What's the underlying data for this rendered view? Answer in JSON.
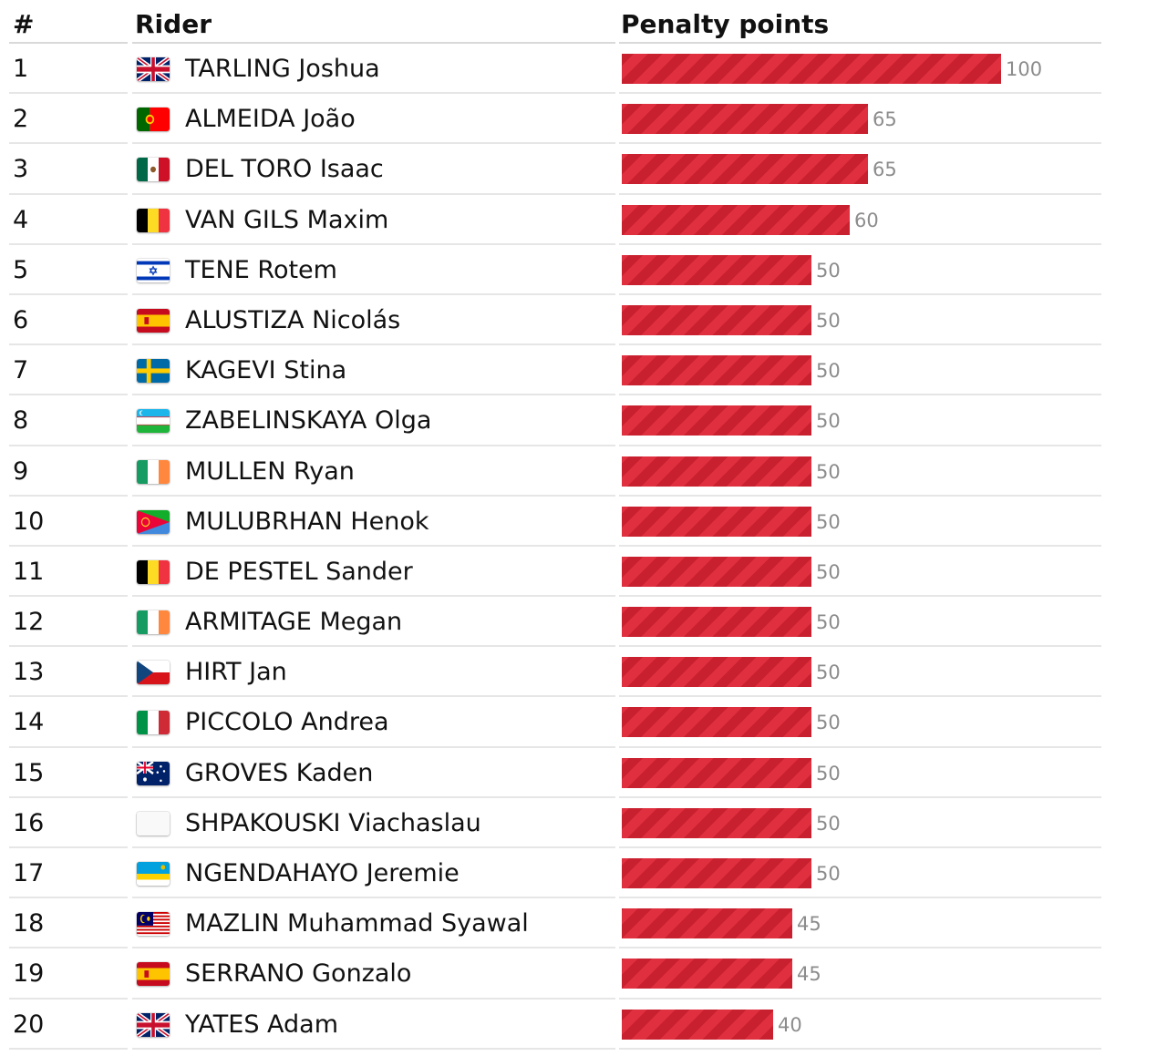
{
  "chart_data": {
    "type": "bar",
    "orientation": "horizontal",
    "columns": {
      "rank": "#",
      "rider": "Rider",
      "value": "Penalty points"
    },
    "xlim": [
      0,
      100
    ],
    "bar_color": "#d4293a",
    "rows": [
      {
        "rank": "1",
        "rider": "TARLING Joshua",
        "flag": "gb",
        "value": 100
      },
      {
        "rank": "2",
        "rider": "ALMEIDA João",
        "flag": "pt",
        "value": 65
      },
      {
        "rank": "3",
        "rider": "DEL TORO Isaac",
        "flag": "mx",
        "value": 65
      },
      {
        "rank": "4",
        "rider": "VAN GILS Maxim",
        "flag": "be",
        "value": 60
      },
      {
        "rank": "5",
        "rider": "TENE Rotem",
        "flag": "il",
        "value": 50
      },
      {
        "rank": "6",
        "rider": "ALUSTIZA Nicolás",
        "flag": "es",
        "value": 50
      },
      {
        "rank": "7",
        "rider": "KAGEVI Stina",
        "flag": "se",
        "value": 50
      },
      {
        "rank": "8",
        "rider": "ZABELINSKAYA Olga",
        "flag": "uz",
        "value": 50
      },
      {
        "rank": "9",
        "rider": "MULLEN Ryan",
        "flag": "ie",
        "value": 50
      },
      {
        "rank": "10",
        "rider": "MULUBRHAN Henok",
        "flag": "er",
        "value": 50
      },
      {
        "rank": "11",
        "rider": "DE PESTEL Sander",
        "flag": "be",
        "value": 50
      },
      {
        "rank": "12",
        "rider": "ARMITAGE Megan",
        "flag": "ie",
        "value": 50
      },
      {
        "rank": "13",
        "rider": "HIRT Jan",
        "flag": "cz",
        "value": 50
      },
      {
        "rank": "14",
        "rider": "PICCOLO Andrea",
        "flag": "it",
        "value": 50
      },
      {
        "rank": "15",
        "rider": "GROVES Kaden",
        "flag": "au",
        "value": 50
      },
      {
        "rank": "16",
        "rider": "SHPAKOUSKI Viachaslau",
        "flag": "blank",
        "value": 50
      },
      {
        "rank": "17",
        "rider": "NGENDAHAYO Jeremie",
        "flag": "rw",
        "value": 50
      },
      {
        "rank": "18",
        "rider": "MAZLIN Muhammad Syawal",
        "flag": "my",
        "value": 45
      },
      {
        "rank": "19",
        "rider": "SERRANO Gonzalo",
        "flag": "es",
        "value": 45
      },
      {
        "rank": "20",
        "rider": "YATES Adam",
        "flag": "gb",
        "value": 40
      }
    ]
  }
}
